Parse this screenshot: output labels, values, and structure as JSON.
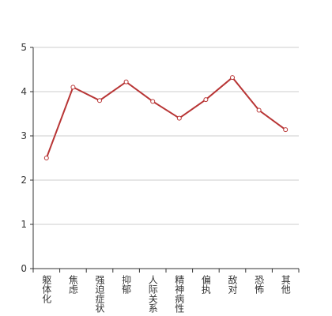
{
  "chart_data": {
    "type": "line",
    "categories": [
      "躯体化",
      "焦虑",
      "强迫症状",
      "抑郁",
      "人际关系",
      "精神病性",
      "偏执",
      "敌对",
      "恐怖",
      "其他"
    ],
    "values": [
      2.5,
      4.1,
      3.8,
      4.22,
      3.78,
      3.4,
      3.82,
      4.32,
      3.58,
      3.14
    ],
    "color": "#b83535",
    "ylim": [
      0,
      5
    ],
    "yticks": [
      0,
      1,
      2,
      3,
      4,
      5
    ],
    "grid": true
  }
}
